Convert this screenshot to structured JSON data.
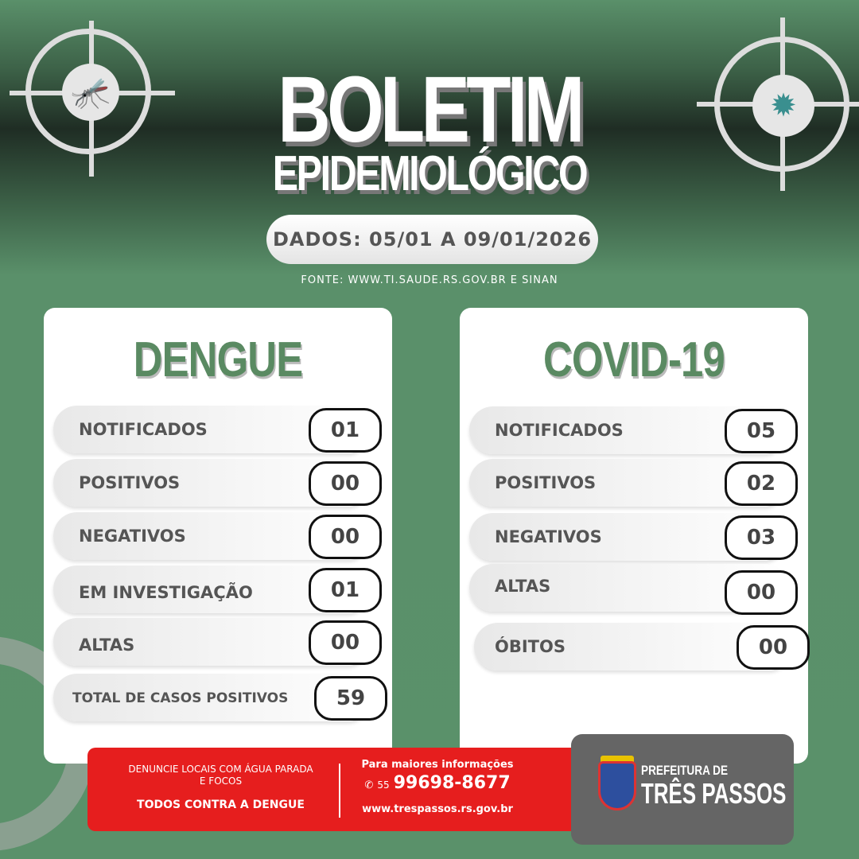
{
  "header": {
    "title": "BOLETIM",
    "subtitle": "EPIDEMIOLÓGICO",
    "dates": "DADOS: 05/01 A 09/01/2026",
    "source": "FONTE: WWW.TI.SAUDE.RS.GOV.BR E SINAN",
    "left_icon": "mosquito-icon",
    "right_icon": "virus-icon"
  },
  "dengue": {
    "title": "DENGUE",
    "rows": [
      {
        "label": "NOTIFICADOS",
        "value": "01"
      },
      {
        "label": "POSITIVOS",
        "value": "00"
      },
      {
        "label": "NEGATIVOS",
        "value": "00"
      },
      {
        "label": "EM INVESTIGAÇÃO",
        "value": "01"
      },
      {
        "label": "ALTAS",
        "value": "00"
      },
      {
        "label": "TOTAL DE CASOS POSITIVOS",
        "value": "59"
      }
    ]
  },
  "covid": {
    "title": "COVID-19",
    "rows": [
      {
        "label": "NOTIFICADOS",
        "value": "05"
      },
      {
        "label": "POSITIVOS",
        "value": "02"
      },
      {
        "label": "NEGATIVOS",
        "value": "03"
      },
      {
        "label": "ALTAS",
        "value": "00"
      },
      {
        "label": "ÓBITOS",
        "value": "00"
      }
    ]
  },
  "footer": {
    "denuncie": "DENUNCIE LOCAIS COM ÁGUA PARADA E FOCOS",
    "slogan": "TODOS CONTRA A DENGUE",
    "info_label": "Para maiores informações",
    "ddd": "55",
    "phone": "99698-8677",
    "website": "www.trespassos.rs.gov.br",
    "org_line1": "PREFEITURA DE",
    "org_line2": "TRÊS PASSOS"
  },
  "colors": {
    "background": "#5a916a",
    "title_green": "#5a8a62",
    "banner_red": "#e61e1e",
    "logo_box": "#656565"
  }
}
